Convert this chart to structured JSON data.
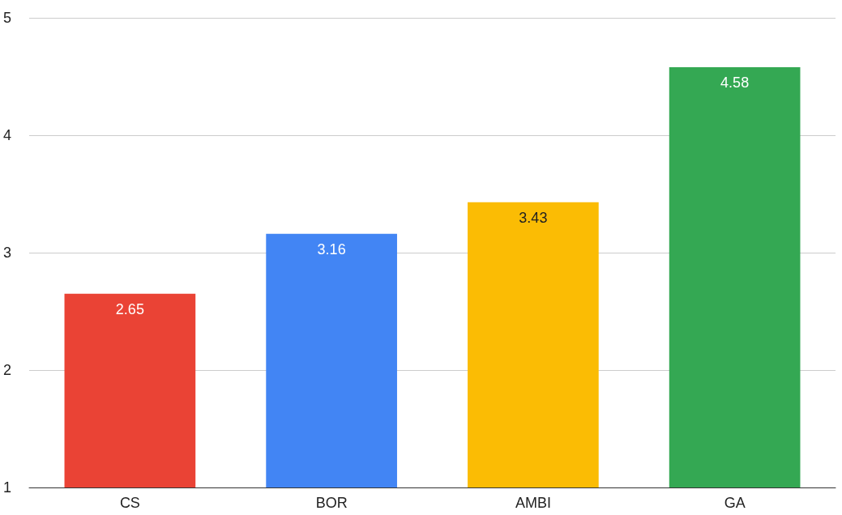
{
  "chart_data": {
    "type": "bar",
    "categories": [
      "CS",
      "BOR",
      "AMBI",
      "GA"
    ],
    "values": [
      2.65,
      3.16,
      3.43,
      4.58
    ],
    "colors": [
      "#ea4335",
      "#4285f4",
      "#fbbc04",
      "#34a853"
    ],
    "ylim": [
      1,
      5
    ],
    "yticks": [
      1,
      2,
      3,
      4,
      5
    ],
    "grid": "y",
    "data_labels": true
  }
}
